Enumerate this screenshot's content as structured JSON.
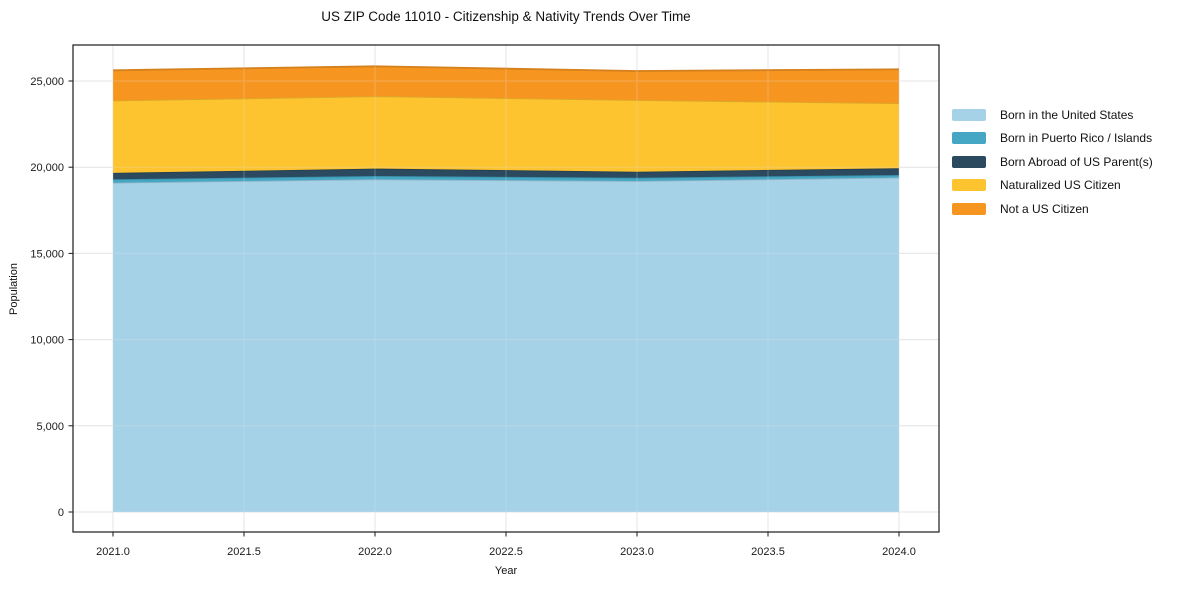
{
  "figure": {
    "title": "US ZIP Code 11010 - Citizenship & Nativity Trends Over Time"
  },
  "chart_data": {
    "type": "area",
    "stacked": true,
    "title": "US ZIP Code 11010 - Citizenship & Nativity Trends Over Time",
    "xlabel": "Year",
    "ylabel": "Population",
    "x": [
      2021,
      2022,
      2023,
      2024
    ],
    "series": [
      {
        "name": "Born in the United States",
        "color": "#a6d2e8",
        "values": [
          19100,
          19300,
          19200,
          19400
        ]
      },
      {
        "name": "Born in Puerto Rico / Islands",
        "color": "#45a7c4",
        "values": [
          200,
          190,
          190,
          150
        ]
      },
      {
        "name": "Born Abroad of US Parent(s)",
        "color": "#2b4a5f",
        "values": [
          370,
          430,
          350,
          390
        ]
      },
      {
        "name": "Naturalized US Citizen",
        "color": "#fdc42f",
        "values": [
          4200,
          4200,
          4160,
          3770
        ]
      },
      {
        "name": "Not a US Citizen",
        "color": "#f79521",
        "values": [
          1750,
          1730,
          1680,
          1970
        ]
      }
    ],
    "totals": [
      25620,
      25850,
      25580,
      25680
    ],
    "x_ticks": [
      2021.0,
      2021.5,
      2022.0,
      2022.5,
      2023.0,
      2023.5,
      2024.0
    ],
    "x_tick_labels": [
      "2021.0",
      "2021.5",
      "2022.0",
      "2022.5",
      "2023.0",
      "2023.5",
      "2024.0"
    ],
    "y_ticks": [
      0,
      5000,
      10000,
      15000,
      20000,
      25000
    ],
    "y_tick_labels": [
      "0",
      "5,000",
      "10,000",
      "15,000",
      "20,000",
      "25,000"
    ],
    "xlim": [
      2020.85,
      2024.15
    ],
    "ylim": [
      -1220,
      27090
    ],
    "grid": true,
    "legend_position": "right",
    "colors": {
      "spine": "#1a1a1a",
      "grid": "#e4e4e4",
      "tick_label": "#1a1a1a",
      "background": "#ffffff"
    }
  }
}
